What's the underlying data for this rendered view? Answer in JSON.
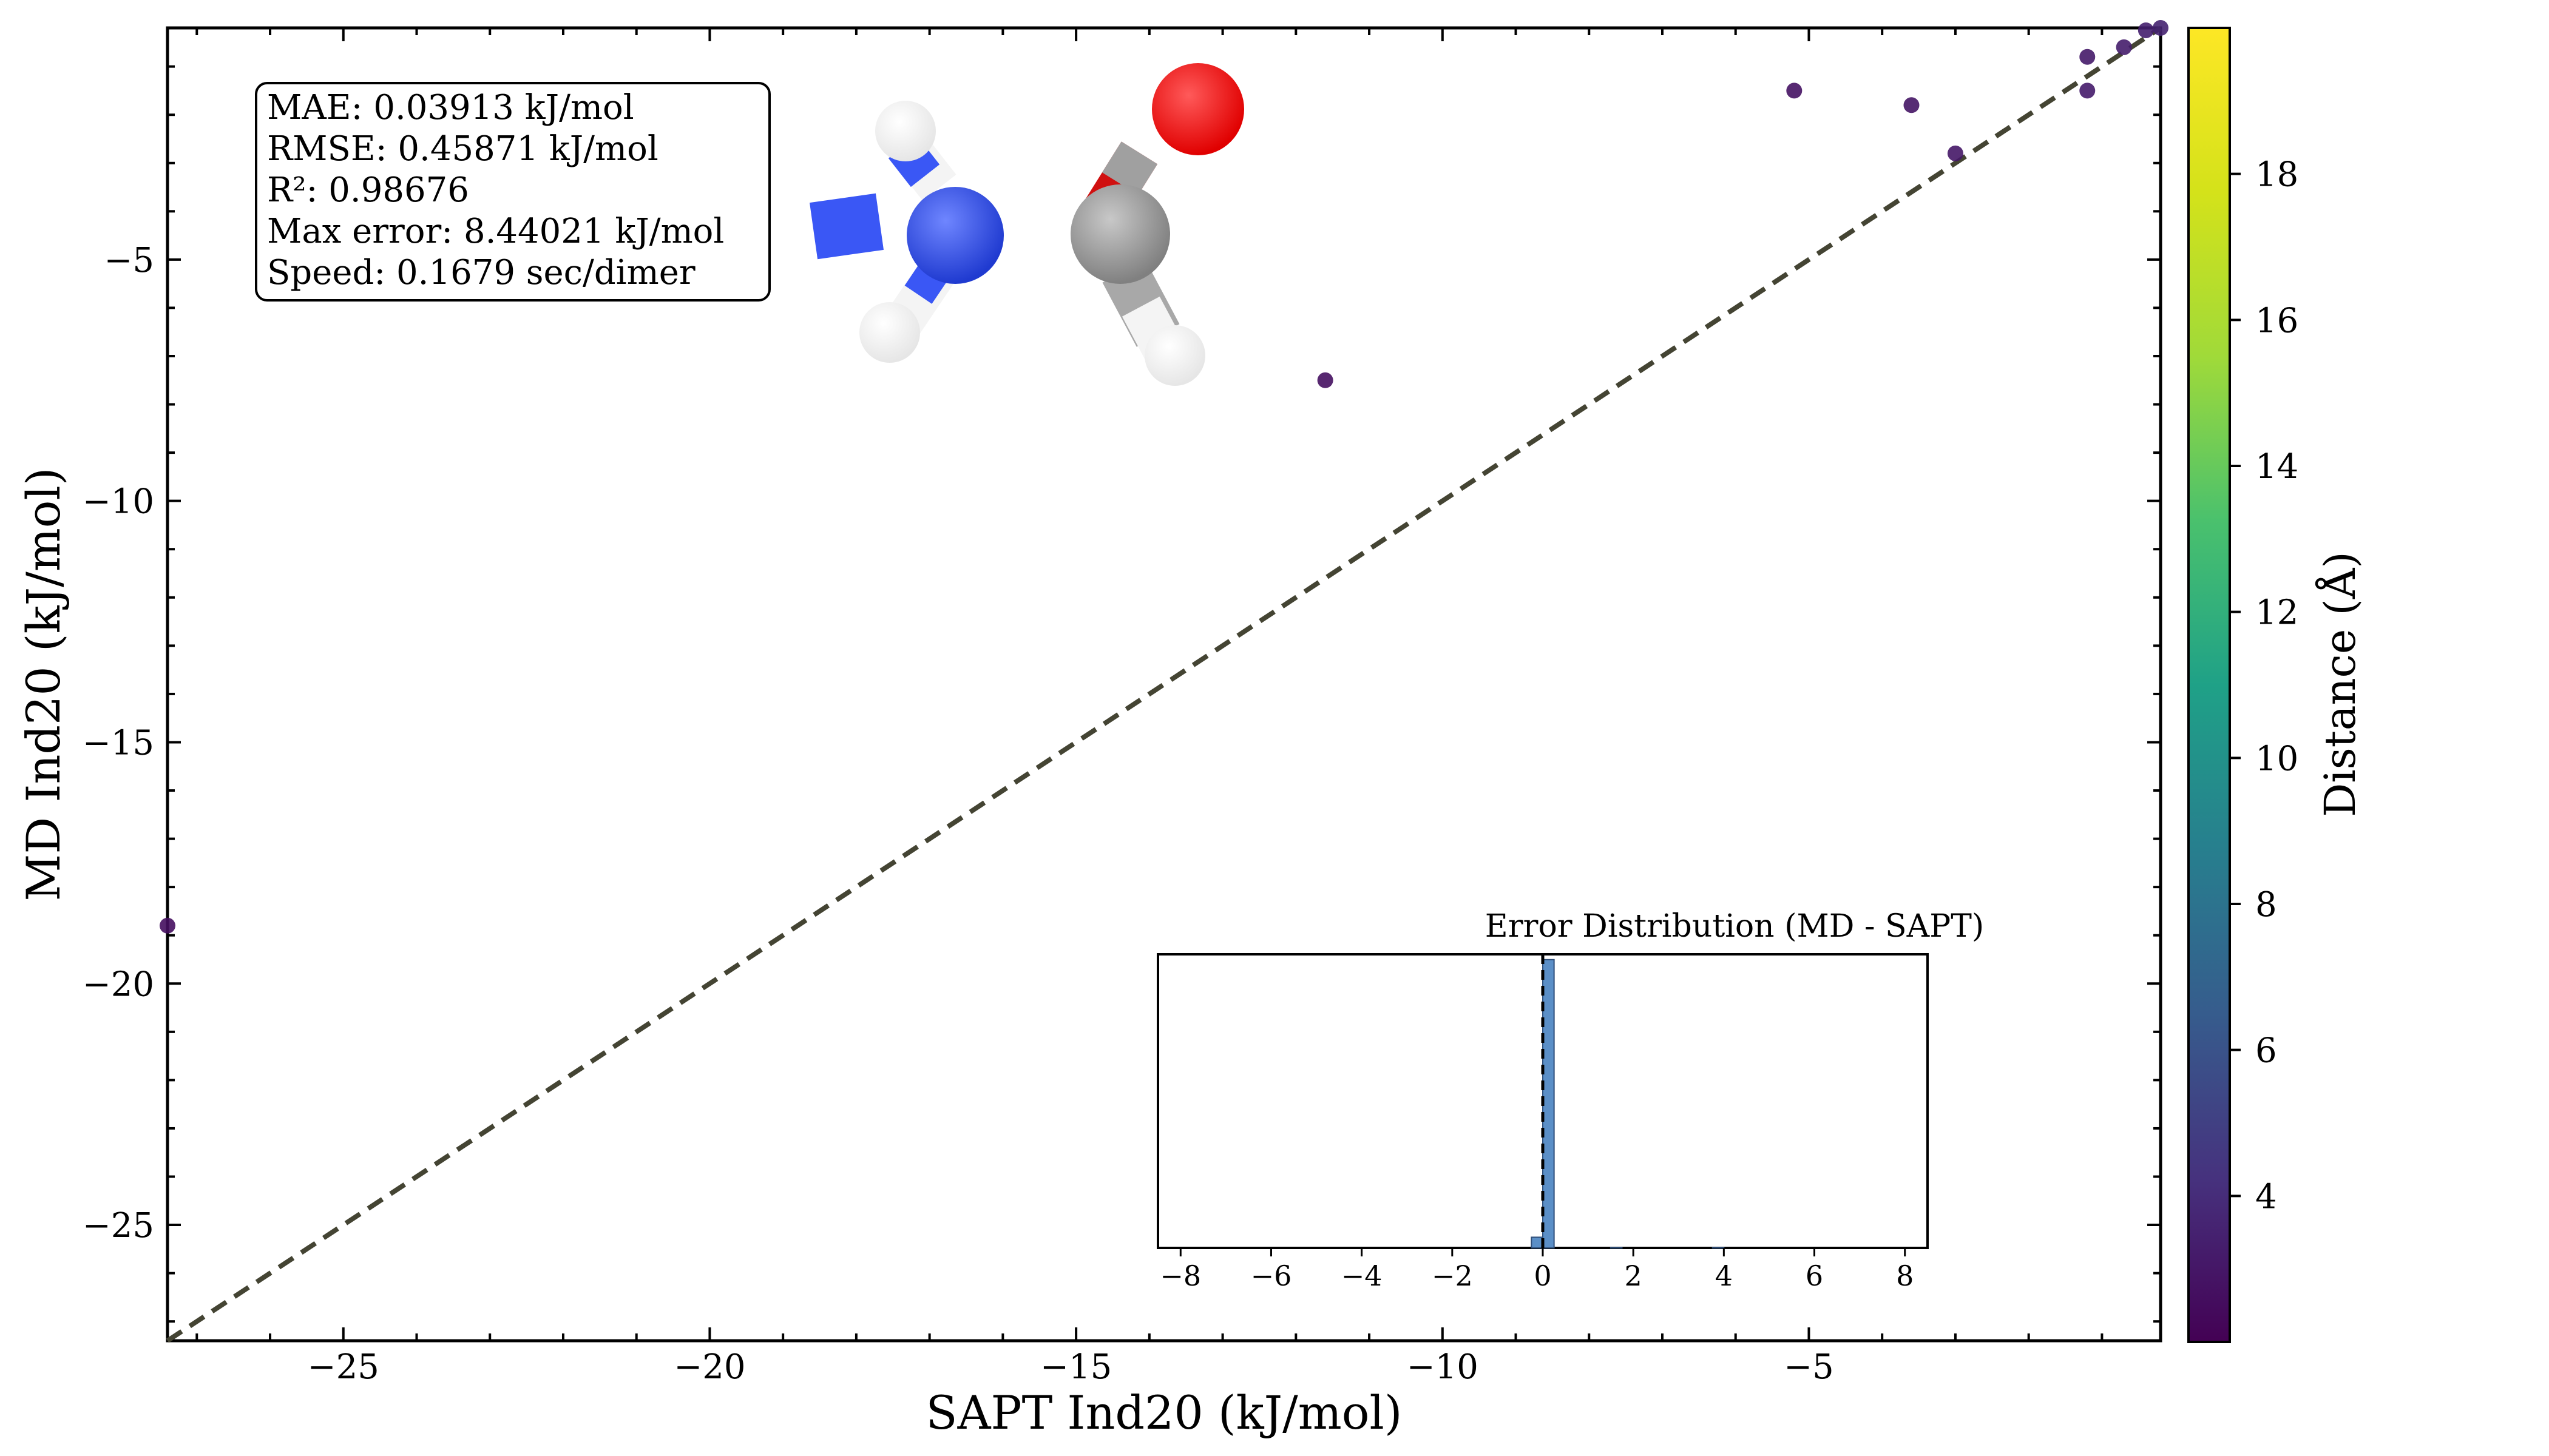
{
  "chart_data": {
    "type": "scatter",
    "xlabel": "SAPT Ind20 (kJ/mol)",
    "ylabel": "MD Ind20 (kJ/mol)",
    "xlim": [
      -27.4,
      -0.2
    ],
    "ylim": [
      -27.4,
      -0.2
    ],
    "xticks": [
      -25,
      -20,
      -15,
      -10,
      -5
    ],
    "yticks": [
      -25,
      -20,
      -15,
      -10,
      -5
    ],
    "grid": false,
    "reference_line": "y = x (dashed)",
    "points": [
      {
        "x": -27.4,
        "y": -18.8,
        "distance": 2.6
      },
      {
        "x": -11.6,
        "y": -7.5,
        "distance": 2.7
      },
      {
        "x": -5.2,
        "y": -1.5,
        "distance": 2.8
      },
      {
        "x": -3.6,
        "y": -1.8,
        "distance": 2.9
      },
      {
        "x": -3.0,
        "y": -2.8,
        "distance": 3.0
      },
      {
        "x": -1.2,
        "y": -0.8,
        "distance": 3.1
      },
      {
        "x": -1.2,
        "y": -1.5,
        "distance": 3.2
      },
      {
        "x": -0.7,
        "y": -0.6,
        "distance": 3.3
      },
      {
        "x": -0.4,
        "y": -0.25,
        "distance": 3.4
      },
      {
        "x": -0.2,
        "y": -0.2,
        "distance": 3.5
      }
    ],
    "colorbar": {
      "label": "Distance (Å)",
      "range": [
        2.0,
        20.0
      ],
      "ticks": [
        4,
        6,
        8,
        10,
        12,
        14,
        16,
        18
      ],
      "colormap": "viridis"
    },
    "stats": [
      "MAE: 0.03913 kJ/mol",
      "RMSE: 0.45871 kJ/mol",
      "R²: 0.98676",
      "Max error: 8.44021 kJ/mol",
      "Speed: 0.1679 sec/dimer"
    ],
    "inset": {
      "type": "histogram",
      "title": "Error Distribution (MD - SAPT)",
      "xlim": [
        -8.5,
        8.5
      ],
      "xticks": [
        -8,
        -6,
        -4,
        -2,
        0,
        2,
        4,
        6,
        8
      ],
      "bar_color": "#5b8fc7",
      "bins": [
        {
          "x0": -0.25,
          "x1": 0.0,
          "count": 40
        },
        {
          "x0": 0.0,
          "x1": 0.25,
          "count": 1080
        },
        {
          "x0": 1.5,
          "x1": 1.75,
          "count": 1
        },
        {
          "x0": 3.75,
          "x1": 4.0,
          "count": 1
        }
      ],
      "count_max": 1100,
      "vline_x": 0
    },
    "molecule": {
      "name": "formamide",
      "atoms": [
        "N",
        "C",
        "O",
        "H",
        "H",
        "H"
      ],
      "colors": {
        "N": "#3050f8",
        "C": "#909090",
        "O": "#ff0d0d",
        "H": "#ffffff"
      }
    }
  }
}
